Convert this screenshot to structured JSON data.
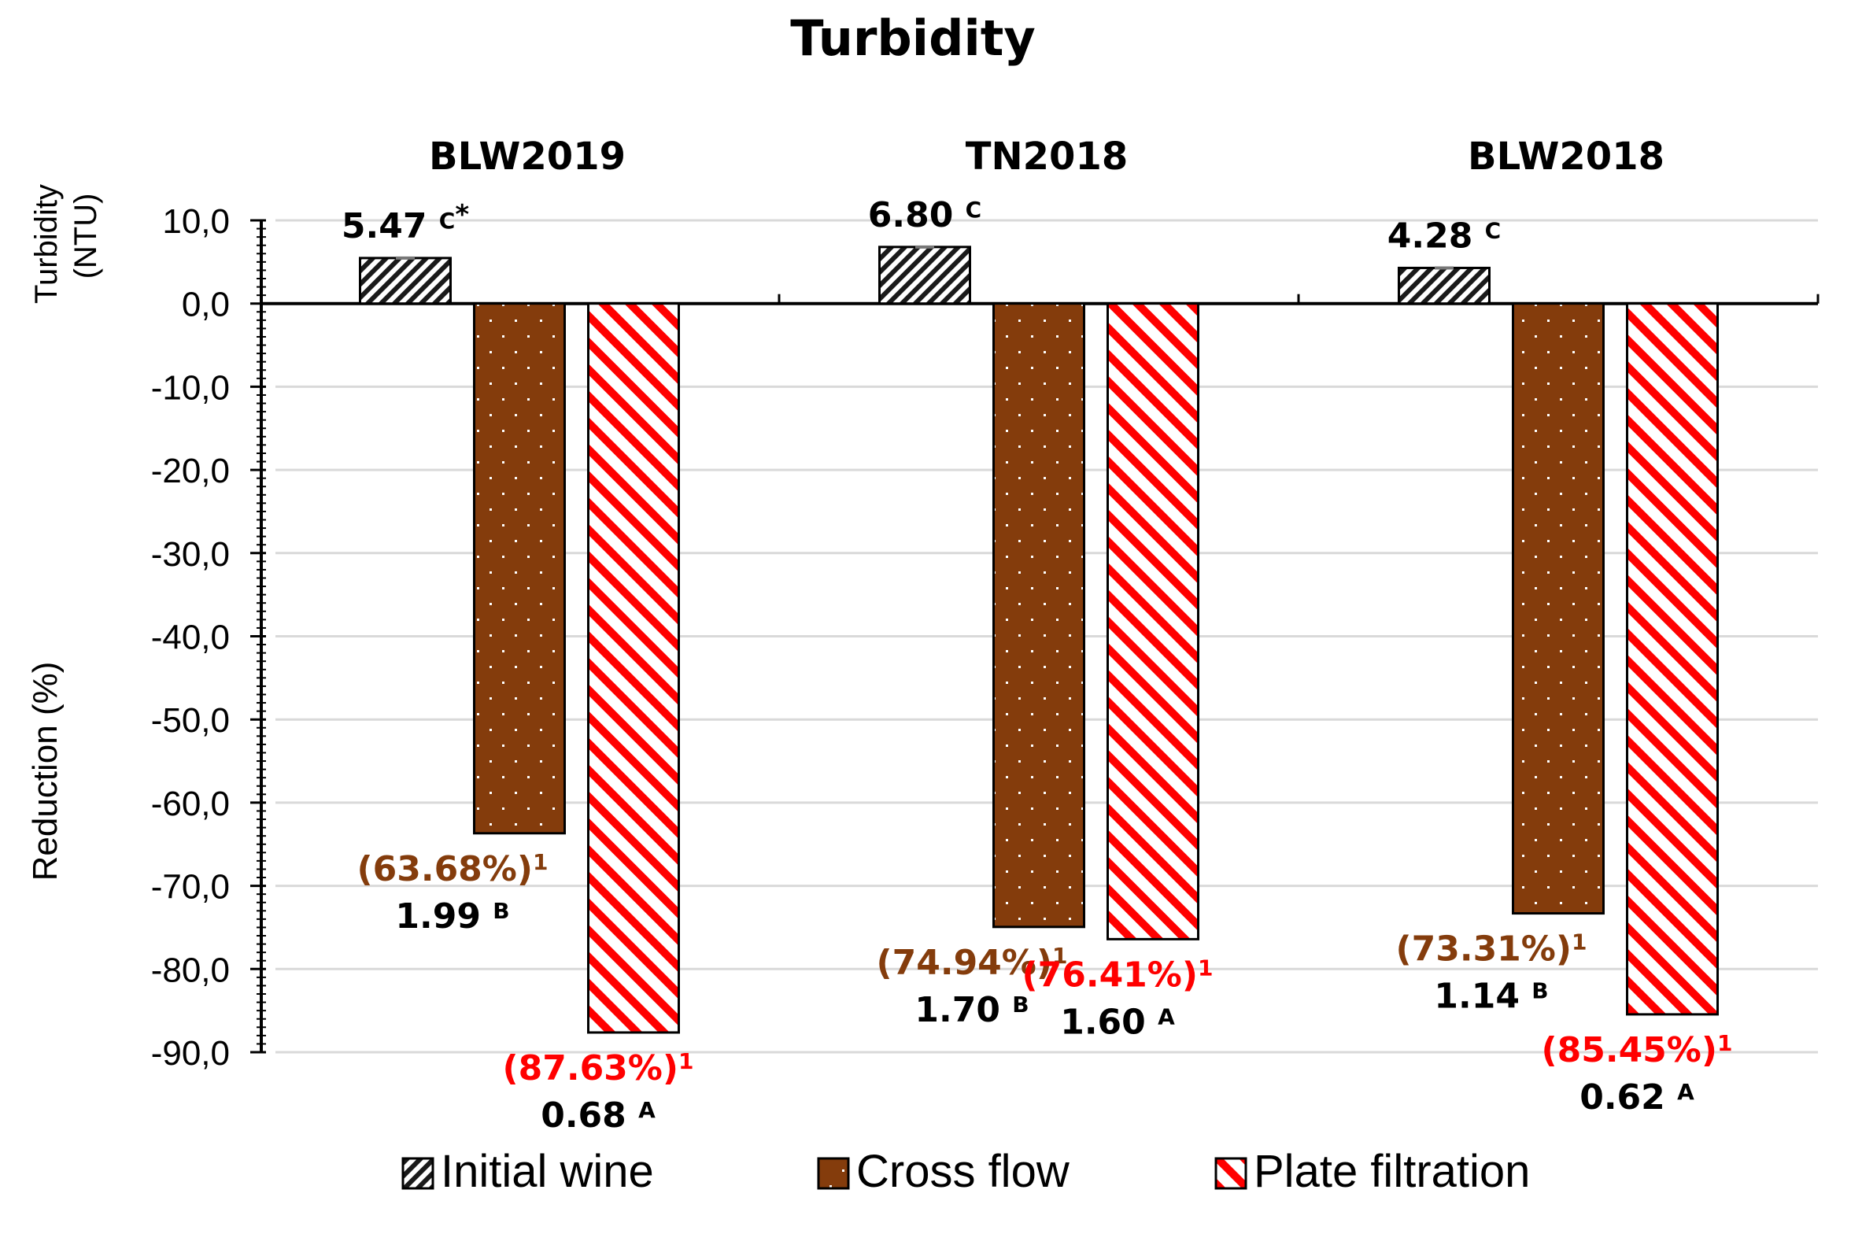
{
  "chart_data": {
    "type": "bar",
    "title": "Turbidity",
    "ylabel_top": [
      "Turbidity",
      "(NTU)"
    ],
    "ylabel_bottom": "Reduction (%)",
    "ylim": [
      -90,
      10
    ],
    "yticks": [
      10,
      0,
      -10,
      -20,
      -30,
      -40,
      -50,
      -60,
      -70,
      -80,
      -90
    ],
    "ytick_labels": [
      "10,0",
      "0,0",
      "-10,0",
      "-20,0",
      "-30,0",
      "-40,0",
      "-50,0",
      "-60,0",
      "-70,0",
      "-80,0",
      "-90,0"
    ],
    "grid": true,
    "legend_position": "bottom",
    "categories": [
      "BLW2019",
      "TN2018",
      "BLW2018"
    ],
    "series": [
      {
        "name": "Initial wine",
        "values": [
          5.47,
          6.8,
          4.28
        ],
        "labels": [
          "5.47",
          "6.80",
          "4.28"
        ],
        "letters": [
          "C",
          "C",
          "C"
        ],
        "asterisk": [
          "*",
          "",
          ""
        ],
        "color": "#1a1a1a"
      },
      {
        "name": "Cross flow",
        "values": [
          -63.68,
          -74.94,
          -73.31
        ],
        "labels": [
          "1.99",
          "1.70",
          "1.14"
        ],
        "letters": [
          "B",
          "B",
          "B"
        ],
        "pct_labels": [
          "(63.68%)",
          "(74.94%)",
          "(73.31%)"
        ],
        "color": "#843c0c"
      },
      {
        "name": "Plate filtration",
        "values": [
          -87.63,
          -76.41,
          -85.45
        ],
        "labels": [
          "0.68",
          "1.60",
          "0.62"
        ],
        "letters": [
          "A",
          "A",
          "A"
        ],
        "pct_labels": [
          "(87.63%)",
          "(76.41%)",
          "(85.45%)"
        ],
        "color": "#ff0000"
      }
    ],
    "footnote_mark": "1",
    "pct_colors": {
      "cross": "#843c0c",
      "plate": "#ff0000"
    }
  }
}
